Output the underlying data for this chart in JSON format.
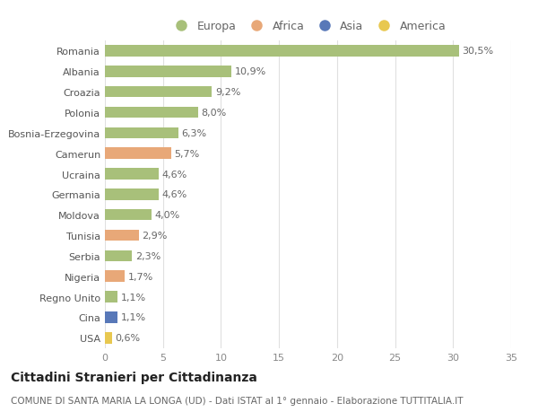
{
  "countries": [
    "Romania",
    "Albania",
    "Croazia",
    "Polonia",
    "Bosnia-Erzegovina",
    "Camerun",
    "Ucraina",
    "Germania",
    "Moldova",
    "Tunisia",
    "Serbia",
    "Nigeria",
    "Regno Unito",
    "Cina",
    "USA"
  ],
  "values": [
    30.5,
    10.9,
    9.2,
    8.0,
    6.3,
    5.7,
    4.6,
    4.6,
    4.0,
    2.9,
    2.3,
    1.7,
    1.1,
    1.1,
    0.6
  ],
  "labels": [
    "30,5%",
    "10,9%",
    "9,2%",
    "8,0%",
    "6,3%",
    "5,7%",
    "4,6%",
    "4,6%",
    "4,0%",
    "2,9%",
    "2,3%",
    "1,7%",
    "1,1%",
    "1,1%",
    "0,6%"
  ],
  "continents": [
    "Europa",
    "Europa",
    "Europa",
    "Europa",
    "Europa",
    "Africa",
    "Europa",
    "Europa",
    "Europa",
    "Africa",
    "Europa",
    "Africa",
    "Europa",
    "Asia",
    "America"
  ],
  "continent_colors": {
    "Europa": "#a8c07a",
    "Africa": "#e8a878",
    "Asia": "#5878b8",
    "America": "#e8c850"
  },
  "legend_order": [
    "Europa",
    "Africa",
    "Asia",
    "America"
  ],
  "title": "Cittadini Stranieri per Cittadinanza",
  "subtitle": "COMUNE DI SANTA MARIA LA LONGA (UD) - Dati ISTAT al 1° gennaio - Elaborazione TUTTITALIA.IT",
  "xlim": [
    0,
    35
  ],
  "xticks": [
    0,
    5,
    10,
    15,
    20,
    25,
    30,
    35
  ],
  "background_color": "#ffffff",
  "grid_color": "#e0e0e0",
  "bar_height": 0.55,
  "title_fontsize": 10,
  "subtitle_fontsize": 7.5,
  "label_fontsize": 8,
  "tick_fontsize": 8,
  "legend_fontsize": 9
}
